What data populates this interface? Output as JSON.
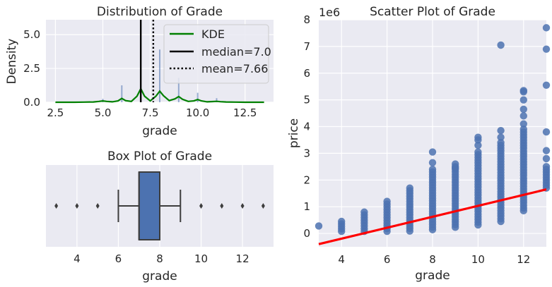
{
  "chart_data": [
    {
      "type": "histogram",
      "title": "Distribution of Grade",
      "xlabel": "grade",
      "ylabel": "Density",
      "xlim": [
        2.0,
        14.0
      ],
      "ylim": [
        0,
        6.1
      ],
      "xticks": [
        2.5,
        5.0,
        7.5,
        10.0,
        12.5
      ],
      "xtick_labels": [
        "2.5",
        "5.0",
        "7.5",
        "10.0",
        "12.5"
      ],
      "yticks": [
        0,
        2.5,
        5.0
      ],
      "ytick_labels": [
        "0.0",
        "2.5",
        "5.0"
      ],
      "grid": true,
      "legend": {
        "position": "top-right",
        "entries": [
          "KDE",
          "median=7.0",
          "mean=7.66"
        ]
      },
      "hist_spikes": [
        {
          "x": 5.0,
          "density": 0.25
        },
        {
          "x": 6.0,
          "density": 1.25
        },
        {
          "x": 7.0,
          "density": 2.5
        },
        {
          "x": 8.0,
          "density": 3.9
        },
        {
          "x": 9.0,
          "density": 1.8
        },
        {
          "x": 10.0,
          "density": 0.7
        },
        {
          "x": 11.0,
          "density": 0.3
        },
        {
          "x": 12.0,
          "density": 0.05
        }
      ],
      "kde": {
        "name": "KDE",
        "color": "#008000",
        "x": [
          2.5,
          3.0,
          3.5,
          4.0,
          4.5,
          4.8,
          5.0,
          5.2,
          5.5,
          5.8,
          6.0,
          6.2,
          6.5,
          6.8,
          7.0,
          7.2,
          7.5,
          7.8,
          8.0,
          8.2,
          8.5,
          8.8,
          9.0,
          9.2,
          9.5,
          9.8,
          10.0,
          10.2,
          10.5,
          10.8,
          11.0,
          11.2,
          11.5,
          12.0,
          12.5,
          13.0,
          13.5
        ],
        "y": [
          0.0,
          0.0,
          0.0,
          0.01,
          0.02,
          0.06,
          0.1,
          0.06,
          0.03,
          0.1,
          0.28,
          0.12,
          0.06,
          0.45,
          1.0,
          0.45,
          0.1,
          0.45,
          0.82,
          0.48,
          0.12,
          0.25,
          0.42,
          0.22,
          0.06,
          0.1,
          0.2,
          0.1,
          0.03,
          0.05,
          0.07,
          0.04,
          0.02,
          0.01,
          0.0,
          0.0,
          0.0
        ]
      },
      "median": {
        "label": "median=7.0",
        "value": 7.0,
        "color": "#000000"
      },
      "mean": {
        "label": "mean=7.66",
        "value": 7.66,
        "color": "#000000"
      }
    },
    {
      "type": "box",
      "title": "Box Plot of Grade",
      "xlabel": "grade",
      "xlim": [
        2.5,
        13.5
      ],
      "xticks": [
        4,
        6,
        8,
        10,
        12
      ],
      "xtick_labels": [
        "4",
        "6",
        "8",
        "10",
        "12"
      ],
      "grid": true,
      "box_color": "#4c72b0",
      "q1": 7,
      "median": 7,
      "q3": 8,
      "whisker_low": 6,
      "whisker_high": 9,
      "outliers": [
        3,
        4,
        5,
        10,
        11,
        12,
        13
      ]
    },
    {
      "type": "scatter",
      "title": "Scatter Plot of Grade",
      "xlabel": "grade",
      "ylabel": "price",
      "y_offset_text": "1e6",
      "xlim": [
        3,
        13
      ],
      "ylim": [
        -0.5,
        8.0
      ],
      "xticks": [
        4,
        6,
        8,
        10,
        12
      ],
      "xtick_labels": [
        "4",
        "6",
        "8",
        "10",
        "12"
      ],
      "yticks": [
        0,
        1,
        2,
        3,
        4,
        5,
        6,
        7,
        8
      ],
      "ytick_labels": [
        "0",
        "1",
        "2",
        "3",
        "4",
        "5",
        "6",
        "7",
        "8"
      ],
      "grid": true,
      "point_color": "#4c72b0",
      "line_color": "#ff0000",
      "regression": {
        "x": [
          3,
          13
        ],
        "y": [
          -0.4,
          1.65
        ]
      },
      "columns": [
        {
          "x": 3,
          "min": 0.28,
          "max": 0.28
        },
        {
          "x": 4,
          "min": 0.08,
          "max": 0.45
        },
        {
          "x": 5,
          "min": 0.08,
          "max": 0.8
        },
        {
          "x": 6,
          "min": 0.08,
          "max": 1.2
        },
        {
          "x": 7,
          "min": 0.09,
          "max": 1.7
        },
        {
          "x": 8,
          "min": 0.14,
          "max": 2.4
        },
        {
          "x": 9,
          "min": 0.23,
          "max": 2.6
        },
        {
          "x": 10,
          "min": 0.32,
          "max": 3.05
        },
        {
          "x": 11,
          "min": 0.45,
          "max": 3.4
        },
        {
          "x": 12,
          "min": 0.85,
          "max": 3.9
        },
        {
          "x": 13,
          "min": 1.7,
          "max": 2.5
        }
      ],
      "extra_points": [
        {
          "x": 8,
          "y": 2.65
        },
        {
          "x": 8,
          "y": 3.05
        },
        {
          "x": 9,
          "y": 2.45
        },
        {
          "x": 10,
          "y": 3.3
        },
        {
          "x": 10,
          "y": 3.5
        },
        {
          "x": 10,
          "y": 3.6
        },
        {
          "x": 11,
          "y": 3.6
        },
        {
          "x": 11,
          "y": 3.85
        },
        {
          "x": 11,
          "y": 7.05
        },
        {
          "x": 12,
          "y": 4.1
        },
        {
          "x": 12,
          "y": 4.4
        },
        {
          "x": 12,
          "y": 4.65
        },
        {
          "x": 12,
          "y": 5.0
        },
        {
          "x": 12,
          "y": 5.3
        },
        {
          "x": 12,
          "y": 5.35
        },
        {
          "x": 13,
          "y": 2.8
        },
        {
          "x": 13,
          "y": 3.1
        },
        {
          "x": 13,
          "y": 3.8
        },
        {
          "x": 13,
          "y": 5.55
        },
        {
          "x": 13,
          "y": 6.9
        },
        {
          "x": 13,
          "y": 7.7
        }
      ]
    }
  ]
}
